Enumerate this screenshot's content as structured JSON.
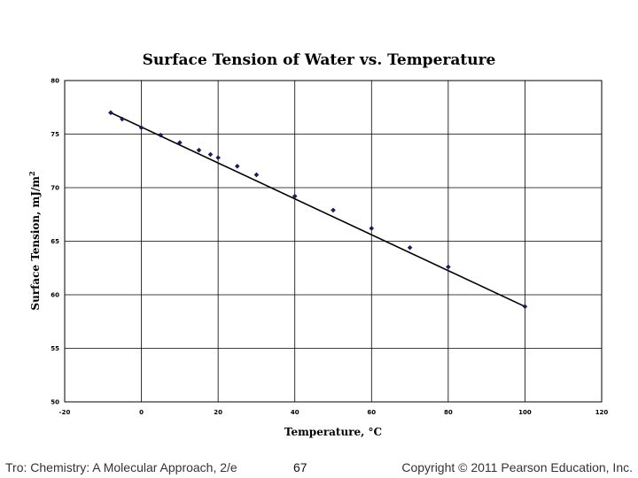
{
  "chart_data": {
    "type": "scatter",
    "title": "Surface Tension of Water vs. Temperature",
    "xlabel": "Temperature, °C",
    "ylabel_main": "Surface Tension, mJ/m",
    "ylabel_superscript": "2",
    "xlim": [
      -20,
      120
    ],
    "ylim": [
      50,
      80
    ],
    "x_ticks": [
      -20,
      0,
      20,
      40,
      60,
      80,
      100,
      120
    ],
    "y_ticks": [
      50,
      55,
      60,
      65,
      70,
      75,
      80
    ],
    "grid": true,
    "legend": "none",
    "marker_color": "#1a1a5e",
    "line_color": "#000000",
    "series": [
      {
        "x": [
          -8,
          -5,
          0,
          5,
          10,
          15,
          18,
          20,
          25,
          30,
          40,
          50,
          60,
          70,
          80,
          100
        ],
        "y": [
          77.0,
          76.4,
          75.6,
          74.9,
          74.2,
          73.5,
          73.1,
          72.8,
          72.0,
          71.2,
          69.2,
          67.9,
          66.2,
          64.4,
          62.6,
          58.9
        ]
      }
    ],
    "trendline": {
      "x": [
        -8,
        100
      ],
      "y": [
        77.0,
        58.9
      ]
    }
  },
  "footer": {
    "left": "Tro: Chemistry: A Molecular Approach, 2/e",
    "center": "67",
    "right": "Copyright © 2011 Pearson Education, Inc."
  }
}
